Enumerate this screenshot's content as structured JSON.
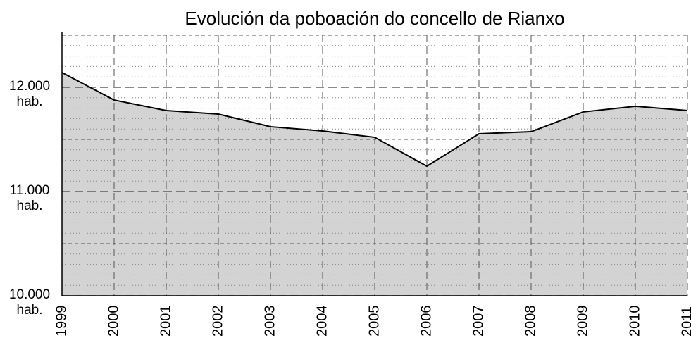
{
  "chart_data": {
    "type": "area-line",
    "title": "Evolución da poboación do concello de Rianxo",
    "categories": [
      "1999",
      "2000",
      "2001",
      "2002",
      "2003",
      "2004",
      "2005",
      "2006",
      "2007",
      "2008",
      "2009",
      "2010",
      "2011"
    ],
    "values": [
      12142,
      11878,
      11777,
      11743,
      11622,
      11581,
      11520,
      11243,
      11554,
      11574,
      11764,
      11818,
      11777
    ],
    "color": "#000000",
    "fill": "#d3d3d3",
    "ylim": [
      10000,
      12500
    ],
    "yticks": [
      {
        "value": 10000,
        "label": "10.000 hab."
      },
      {
        "value": 11000,
        "label": "11.000 hab."
      },
      {
        "value": 12000,
        "label": "12.000 hab."
      }
    ],
    "minor_yticks": [
      10100,
      10200,
      10300,
      10400,
      10500,
      10600,
      10700,
      10800,
      10900,
      11100,
      11200,
      11300,
      11400,
      11500,
      11600,
      11700,
      11800,
      11900,
      12100,
      12200,
      12300,
      12400,
      12500
    ],
    "grid": true
  }
}
